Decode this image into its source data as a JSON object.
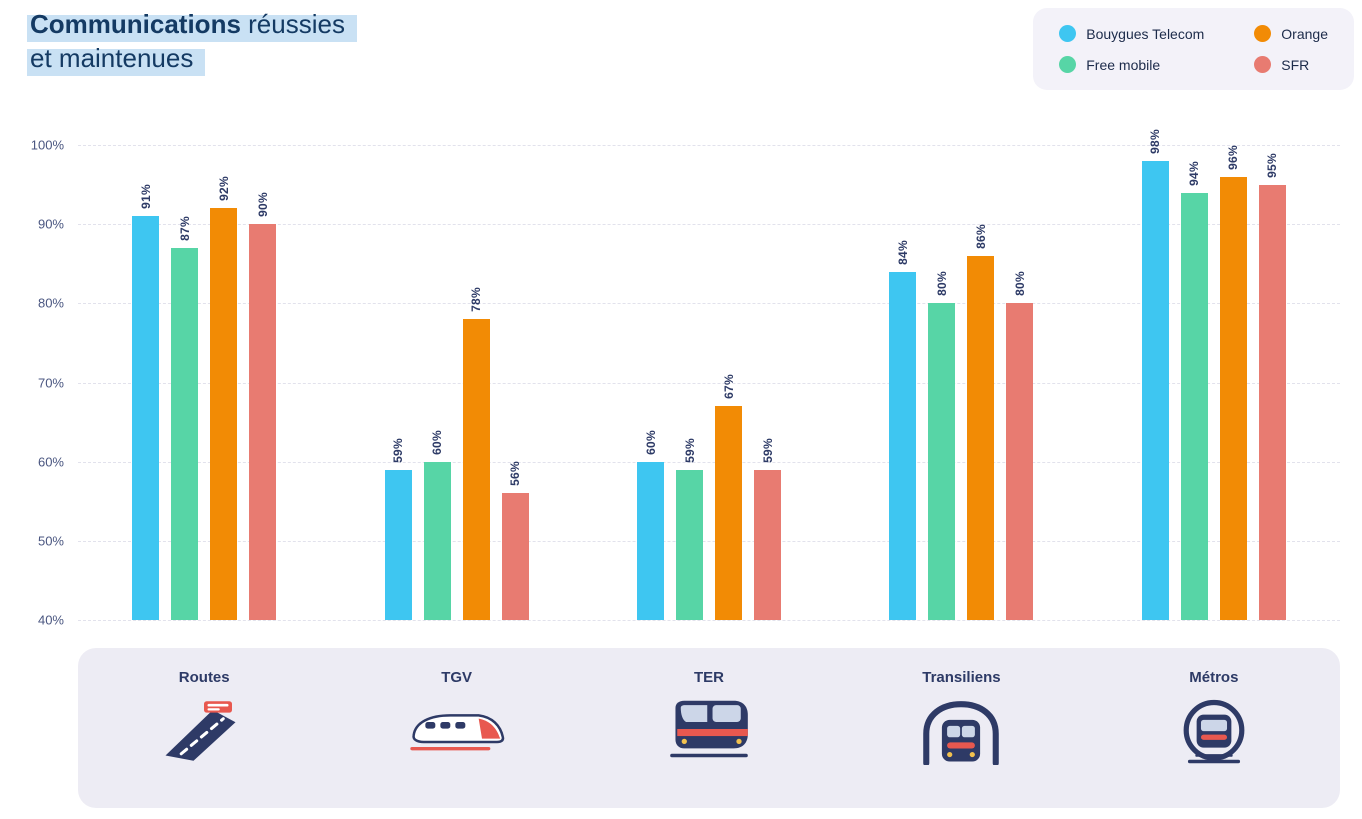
{
  "title": {
    "bold": "Communications",
    "rest": " réussies",
    "line2": "et maintenues"
  },
  "legend": [
    {
      "label": "Bouygues Telecom",
      "color": "#3ec6f1"
    },
    {
      "label": "Orange",
      "color": "#f28b05"
    },
    {
      "label": "Free mobile",
      "color": "#57d5a6"
    },
    {
      "label": "SFR",
      "color": "#e87b71"
    }
  ],
  "chart_data": {
    "type": "bar",
    "title": "Communications réussies et maintenues",
    "categories": [
      "Routes",
      "TGV",
      "TER",
      "Transiliens",
      "Métros"
    ],
    "series": [
      {
        "name": "Bouygues Telecom",
        "color": "#3ec6f1",
        "values": [
          91,
          59,
          60,
          84,
          98
        ]
      },
      {
        "name": "Free mobile",
        "color": "#57d5a6",
        "values": [
          87,
          60,
          59,
          80,
          94
        ]
      },
      {
        "name": "Orange",
        "color": "#f28b05",
        "values": [
          92,
          78,
          67,
          86,
          96
        ]
      },
      {
        "name": "SFR",
        "color": "#e87b71",
        "values": [
          90,
          56,
          59,
          80,
          95
        ]
      }
    ],
    "value_label_suffix": "%",
    "ylim": [
      40,
      100
    ],
    "yticks": [
      "100%",
      "90%",
      "80%",
      "70%",
      "60%",
      "50%",
      "40%"
    ],
    "grid": "horizontal-dashed",
    "legend_position": "top-right"
  },
  "footer": {
    "icons": [
      "road-icon",
      "tgv-train-icon",
      "ter-train-icon",
      "transilien-train-icon",
      "metro-train-icon"
    ]
  },
  "colors": {
    "title_text": "#143a63",
    "title_highlight": "#c9e1f4",
    "axis_text": "#4a5680",
    "value_label": "#2d3a66",
    "gridline": "#e2e2ec",
    "footer_bg": "#edecf4",
    "legend_bg": "#f3f2f9",
    "icon_navy": "#2e3a66",
    "icon_red": "#e8584f"
  }
}
